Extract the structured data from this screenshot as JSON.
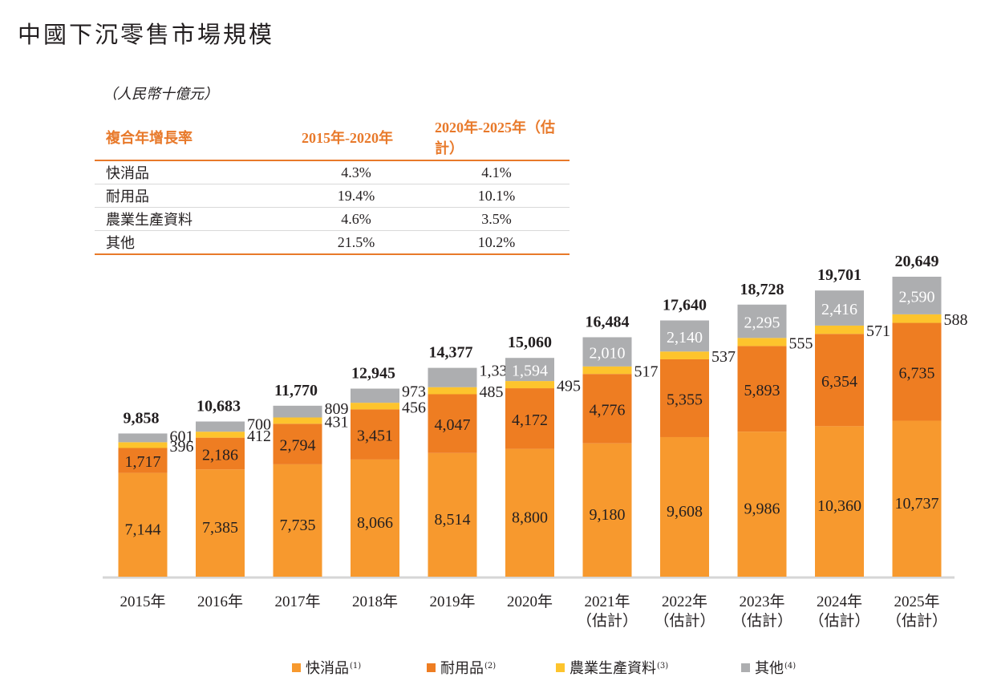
{
  "title": "中國下沉零售市場規模",
  "unit_label": "（人民幣十億元）",
  "cagr_table": {
    "headers": [
      "複合年增長率",
      "2015年-2020年",
      "2020年-2025年（估計）"
    ],
    "rows": [
      {
        "label": "快消品",
        "v1": "4.3%",
        "v2": "4.1%"
      },
      {
        "label": "耐用品",
        "v1": "19.4%",
        "v2": "10.1%"
      },
      {
        "label": "農業生產資料",
        "v1": "4.6%",
        "v2": "3.5%"
      },
      {
        "label": "其他",
        "v1": "21.5%",
        "v2": "10.2%"
      }
    ]
  },
  "colors": {
    "fmcg": "#f7992e",
    "durables": "#ee7d22",
    "agri": "#fdc42d",
    "others": "#adaeb0",
    "accent": "#e8792a",
    "axis": "#d6d6d6"
  },
  "chart_data": {
    "type": "bar",
    "stacked": true,
    "title": "中國下沉零售市場規模",
    "ylabel": "人民幣十億元",
    "categories": [
      "2015年",
      "2016年",
      "2017年",
      "2018年",
      "2019年",
      "2020年",
      "2021年",
      "2022年",
      "2023年",
      "2024年",
      "2025年"
    ],
    "category_sublabels": [
      "",
      "",
      "",
      "",
      "",
      "",
      "（估計）",
      "（估計）",
      "（估計）",
      "（估計）",
      "（估計）"
    ],
    "series": [
      {
        "name": "快消品",
        "note": "(1)",
        "key": "fmcg",
        "values": [
          7144,
          7385,
          7735,
          8066,
          8514,
          8800,
          9180,
          9608,
          9986,
          10360,
          10737
        ]
      },
      {
        "name": "耐用品",
        "note": "(2)",
        "key": "durables",
        "values": [
          1717,
          2186,
          2794,
          3451,
          4047,
          4172,
          4776,
          5355,
          5893,
          6354,
          6735
        ]
      },
      {
        "name": "農業生產資料",
        "note": "(3)",
        "key": "agri",
        "values": [
          396,
          412,
          431,
          456,
          485,
          495,
          517,
          537,
          555,
          571,
          588
        ]
      },
      {
        "name": "其他",
        "note": "(4)",
        "key": "others",
        "values": [
          601,
          700,
          809,
          973,
          1330,
          1594,
          2010,
          2140,
          2295,
          2416,
          2590
        ]
      }
    ],
    "totals": [
      9858,
      10683,
      11770,
      12945,
      14377,
      15060,
      16484,
      17640,
      18728,
      19701,
      20649
    ],
    "others_label_inside_from_index": 5,
    "ylim": [
      0,
      21000
    ],
    "grid": false,
    "legend_position": "bottom"
  }
}
